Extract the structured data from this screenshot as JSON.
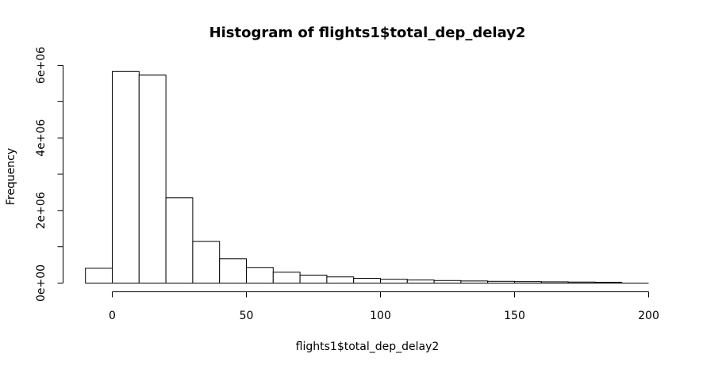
{
  "chart_data": {
    "type": "bar",
    "title": "Histogram of flights1$total_dep_delay2",
    "xlabel": "flights1$total_dep_delay2",
    "ylabel": "Frequency",
    "bin_width": 10,
    "bins": [
      {
        "start": -10,
        "end": 0,
        "count": 410000
      },
      {
        "start": 0,
        "end": 10,
        "count": 5830000
      },
      {
        "start": 10,
        "end": 20,
        "count": 5730000
      },
      {
        "start": 20,
        "end": 30,
        "count": 2350000
      },
      {
        "start": 30,
        "end": 40,
        "count": 1150000
      },
      {
        "start": 40,
        "end": 50,
        "count": 670000
      },
      {
        "start": 50,
        "end": 60,
        "count": 430000
      },
      {
        "start": 60,
        "end": 70,
        "count": 300000
      },
      {
        "start": 70,
        "end": 80,
        "count": 220000
      },
      {
        "start": 80,
        "end": 90,
        "count": 170000
      },
      {
        "start": 90,
        "end": 100,
        "count": 130000
      },
      {
        "start": 100,
        "end": 110,
        "count": 105000
      },
      {
        "start": 110,
        "end": 120,
        "count": 85000
      },
      {
        "start": 120,
        "end": 130,
        "count": 70000
      },
      {
        "start": 130,
        "end": 140,
        "count": 58000
      },
      {
        "start": 140,
        "end": 150,
        "count": 48000
      },
      {
        "start": 150,
        "end": 160,
        "count": 40000
      },
      {
        "start": 160,
        "end": 170,
        "count": 34000
      },
      {
        "start": 170,
        "end": 180,
        "count": 28000
      },
      {
        "start": 180,
        "end": 190,
        "count": 23000
      },
      {
        "start": 190,
        "end": 200,
        "count": 0
      }
    ],
    "xlim": [
      -10,
      200
    ],
    "ylim": [
      0,
      6000000
    ],
    "x_ticks": [
      0,
      50,
      100,
      150,
      200
    ],
    "x_tick_labels": [
      "0",
      "50",
      "100",
      "150",
      "200"
    ],
    "y_ticks": [
      0,
      1000000,
      2000000,
      3000000,
      4000000,
      5000000,
      6000000
    ],
    "y_tick_labels": [
      "0e+00",
      "",
      "2e+06",
      "",
      "4e+06",
      "",
      "6e+06"
    ],
    "grid": false,
    "legend": "none"
  }
}
